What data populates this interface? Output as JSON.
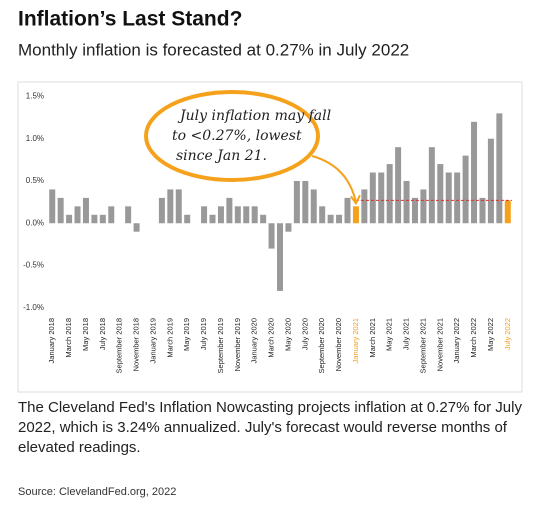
{
  "chart_data": {
    "type": "bar",
    "title": "Inflation’s Last Stand?",
    "subtitle": "Monthly inflation is forecasted at 0.27% in July 2022",
    "caption": "The Cleveland Fed's Inflation Nowcasting projects inflation at 0.27% for July 2022, which is 3.24% annualized. July's forecast would reverse months of elevated readings.",
    "source": "Source: ClevelandFed.org, 2022",
    "annotation": [
      "July inflation may fall",
      "to <0.27%, lowest",
      "since Jan 21."
    ],
    "categories": [
      "January 2018",
      null,
      "March 2018",
      null,
      "May 2018",
      null,
      "July 2018",
      null,
      "September 2018",
      null,
      "November 2018",
      null,
      "January 2019",
      null,
      "March 2019",
      null,
      "May 2019",
      null,
      "July 2019",
      null,
      "September 2019",
      null,
      "November 2019",
      null,
      "January 2020",
      null,
      "March 2020",
      null,
      "May 2020",
      null,
      "July 2020",
      null,
      "September 2020",
      null,
      "November 2020",
      null,
      "January 2021",
      null,
      "March 2021",
      null,
      "May 2021",
      null,
      "July 2021",
      null,
      "September 2021",
      null,
      "November 2021",
      null,
      "January 2022",
      null,
      "March 2022",
      null,
      "May 2022",
      null,
      "July 2022"
    ],
    "values": [
      0.4,
      0.3,
      0.1,
      0.2,
      0.3,
      0.1,
      0.1,
      0.2,
      0,
      0.2,
      -0.1,
      0,
      0,
      0.3,
      0.4,
      0.4,
      0.1,
      0,
      0.2,
      0.1,
      0.2,
      0.3,
      0.2,
      0.2,
      0.2,
      0.1,
      -0.3,
      -0.8,
      -0.1,
      0.5,
      0.5,
      0.4,
      0.2,
      0.1,
      0.1,
      0.3,
      0.2,
      0.4,
      0.6,
      0.6,
      0.7,
      0.9,
      0.5,
      0.3,
      0.4,
      0.9,
      0.7,
      0.6,
      0.6,
      0.8,
      1.2,
      0.3,
      1.0,
      1.3,
      0.27
    ],
    "colors": [
      "#999999",
      "#999999",
      "#999999",
      "#999999",
      "#999999",
      "#999999",
      "#999999",
      "#999999",
      "#999999",
      "#999999",
      "#999999",
      "#999999",
      "#999999",
      "#999999",
      "#999999",
      "#999999",
      "#999999",
      "#999999",
      "#999999",
      "#999999",
      "#999999",
      "#999999",
      "#999999",
      "#999999",
      "#999999",
      "#999999",
      "#999999",
      "#999999",
      "#999999",
      "#999999",
      "#999999",
      "#999999",
      "#999999",
      "#999999",
      "#999999",
      "#999999",
      "#f5a11c",
      "#999999",
      "#999999",
      "#999999",
      "#999999",
      "#999999",
      "#999999",
      "#999999",
      "#999999",
      "#999999",
      "#999999",
      "#999999",
      "#999999",
      "#999999",
      "#999999",
      "#999999",
      "#999999",
      "#999999",
      "#f5a11c"
    ],
    "reference_line": 0.27,
    "reference_color": "#d9342b",
    "ylim": [
      -1.05,
      1.6
    ],
    "yticks": [
      {
        "value": 1.5,
        "label": "1.5%"
      },
      {
        "value": 1.0,
        "label": "1.0%"
      },
      {
        "value": 0.5,
        "label": "0.5%"
      },
      {
        "value": 0,
        "label": "0.0%"
      },
      {
        "value": -0.5,
        "label": "-0.5%"
      },
      {
        "value": -1.0,
        "label": "-1.0%"
      }
    ]
  }
}
